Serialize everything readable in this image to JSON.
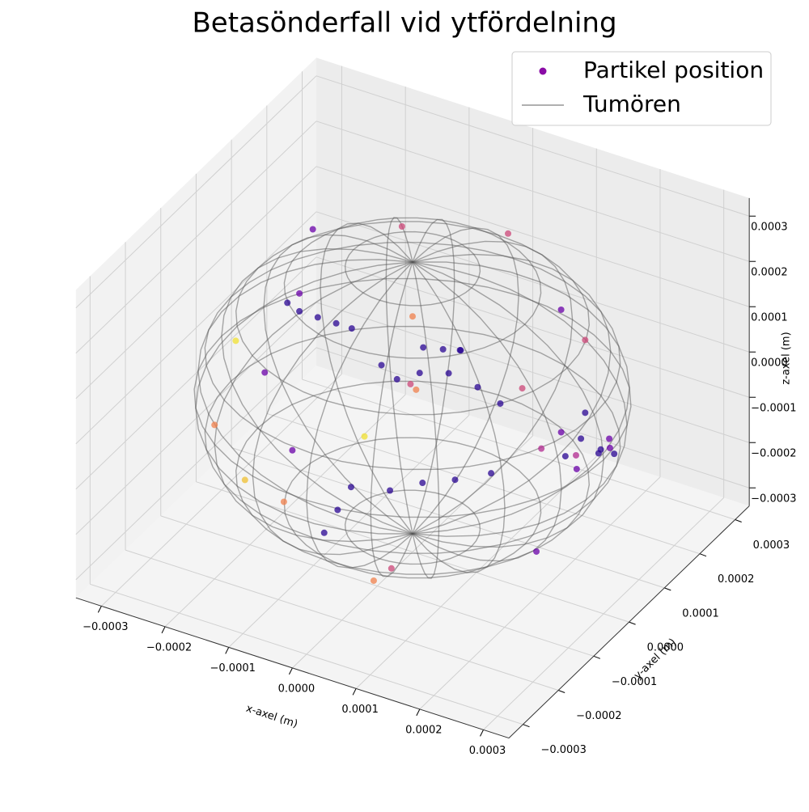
{
  "chart_data": {
    "type": "scatter3d",
    "title": "Betasönderfall vid ytfördelning",
    "xlabel": "x-axel (m)",
    "ylabel": "y-axel (m)",
    "zlabel": "z-axel (m)",
    "xlim": [
      -0.00034,
      0.00034
    ],
    "ylim": [
      -0.00034,
      0.00034
    ],
    "zlim": [
      -0.00034,
      0.00034
    ],
    "xticks": [
      {
        "value": -0.0003,
        "label": "−0.0003"
      },
      {
        "value": -0.0002,
        "label": "−0.0002"
      },
      {
        "value": -0.0001,
        "label": "−0.0001"
      },
      {
        "value": 0,
        "label": "0.0000"
      },
      0.0001,
      0.0002,
      0.0003
    ],
    "yticks": [
      {
        "value": -0.0003,
        "label": "−0.0003"
      },
      {
        "value": -0.0002,
        "label": "−0.0002"
      },
      {
        "value": -0.0001,
        "label": "−0.0001"
      },
      {
        "value": 0,
        "label": "0.0000"
      },
      0.0001,
      0.0002,
      0.0003
    ],
    "zticks": [
      {
        "value": -0.0003,
        "label": "−0.0003"
      },
      {
        "value": -0.0002,
        "label": "−0.0002"
      },
      {
        "value": -0.0001,
        "label": "−0.0001"
      },
      {
        "value": 0,
        "label": "0.0000"
      },
      0.0001,
      0.0002,
      0.0003
    ],
    "grid": true,
    "legend": "upper right",
    "series": [
      {
        "name": "Partikel position",
        "type": "scatter",
        "color": "#8a0ca6",
        "x": [
          0.00022,
          0.00024,
          0.0002,
          0.00025,
          0.00023,
          0.00021,
          0.00026,
          0.00019,
          0.00024,
          0.00022,
          0.00027,
          0.00018,
          0.0001,
          0.00012,
          0.00013,
          0.00012,
          -0.00023,
          -0.0002,
          -0.00016,
          -0.00012,
          -9e-05,
          -6e-05,
          -3e-05,
          0,
          4e-05,
          8e-05,
          0.00011,
          2e-05,
          6e-05,
          0.0001,
          0.00014,
          -5e-05,
          -4e-05,
          -3e-05,
          -0.00025,
          -0.00018,
          -8e-05,
          5e-05,
          -0.00024,
          -0.0001,
          5e-05,
          -0.00015,
          0.00015,
          0.0002,
          -5e-05,
          0.0001,
          0.00025,
          -0.0002,
          -0.00012,
          0,
          0.00016,
          -0.00026,
          8e-05,
          -5e-05
        ],
        "y": [
          8e-05,
          0.0001,
          6e-05,
          0.00012,
          5e-05,
          0.00011,
          9e-05,
          9e-05,
          3e-05,
          0.00013,
          7e-05,
          4e-05,
          -0.00015,
          -0.00013,
          -0.0001,
          -8e-05,
          6e-05,
          4e-05,
          2e-05,
          0,
          -1e-05,
          2e-05,
          1e-05,
          2e-05,
          3e-05,
          4e-05,
          5e-05,
          -0.0001,
          -8e-05,
          -6e-05,
          -3e-05,
          -0.00016,
          -0.00014,
          -0.00012,
          -5e-05,
          -0.00015,
          -0.00022,
          -0.0002,
          0.00015,
          0.00015,
          0.00018,
          -5e-05,
          0.00015,
          -5e-05,
          -0.00025,
          -0.00024,
          -0.0001,
          -0.0002,
          8e-05,
          0,
          0.0002,
          5e-05,
          -0.00015,
          0.0001
        ],
        "z": [
          -5e-05,
          -8e-05,
          -3e-05,
          -0.0001,
          -9e-05,
          -2e-05,
          -6e-05,
          -0.00011,
          -4e-05,
          -0.00012,
          -2e-05,
          -6e-05,
          0.00027,
          0.00026,
          0.00024,
          0.00022,
          6e-05,
          7e-05,
          9e-05,
          0.00011,
          0.00012,
          3e-05,
          2e-05,
          4e-05,
          5e-05,
          3e-05,
          0,
          -0.00012,
          -0.0001,
          -9e-05,
          -8e-05,
          -0.0002,
          -0.00016,
          -0.00012,
          5e-05,
          -0.00015,
          -0.0001,
          -0.00023,
          0.00015,
          0.00022,
          0.00025,
          0.0002,
          0.00015,
          0.00015,
          5e-05,
          -0.00015,
          -0.00015,
          0,
          -0.0002,
          0.00018,
          5e-05,
          -0.0001,
          0.00018,
          -8e-05
        ],
        "colors": [
          "#2a0593",
          "#2a0593",
          "#6a00a8",
          "#2a0593",
          "#6a00a8",
          "#2a0593",
          "#6a00a8",
          "#2a0593",
          "#b12a90",
          "#2a0593",
          "#6a00a8",
          "#b12a90",
          "#2a0593",
          "#2a0593",
          "#2a0593",
          "#2a0593",
          "#2a0593",
          "#2a0593",
          "#2a0593",
          "#2a0593",
          "#2a0593",
          "#2a0593",
          "#2a0593",
          "#2a0593",
          "#2a0593",
          "#2a0593",
          "#2a0593",
          "#2a0593",
          "#2a0593",
          "#2a0593",
          "#2a0593",
          "#2a0593",
          "#2a0593",
          "#2a0593",
          "#f0e030",
          "#f0c030",
          "#f0804c",
          "#f0804c",
          "#6a00a8",
          "#cc4778",
          "#cc4778",
          "#6a00a8",
          "#6a00a8",
          "#cc4778",
          "#6a00a8",
          "#cc4778",
          "#6a00a8",
          "#f0804c",
          "#f0e030",
          "#f0804c",
          "#cc4778",
          "#6a00a8",
          "#cc4778",
          "#f0804c"
        ]
      },
      {
        "name": "Tumören",
        "type": "wireframe",
        "color": "#b0b0b0",
        "radius": 0.0003
      }
    ]
  }
}
